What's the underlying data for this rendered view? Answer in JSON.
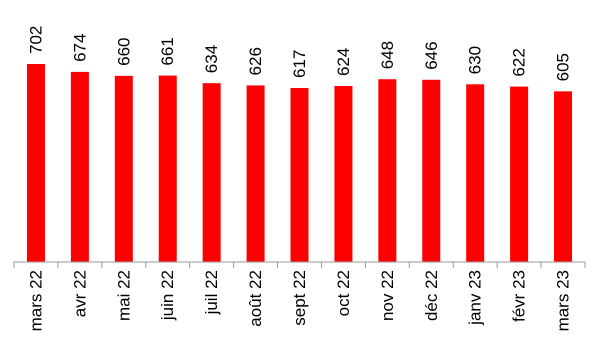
{
  "chart_data": {
    "type": "bar",
    "title": "",
    "xlabel": "",
    "ylabel": "",
    "categories": [
      "mars 22",
      "avr 22",
      "mai 22",
      "juin 22",
      "juil 22",
      "août 22",
      "sept 22",
      "oct 22",
      "nov 22",
      "déc 22",
      "janv 23",
      "févr 23",
      "mars 23"
    ],
    "values": [
      702,
      674,
      660,
      661,
      634,
      626,
      617,
      624,
      648,
      646,
      630,
      622,
      605
    ],
    "value_labels": [
      "702",
      "674",
      "660",
      "661",
      "634",
      "626",
      "617",
      "624",
      "648",
      "646",
      "630",
      "622",
      "605"
    ],
    "bar_color": "#FF0000",
    "axis_color": "#999999",
    "grid": false,
    "legend": "none"
  }
}
